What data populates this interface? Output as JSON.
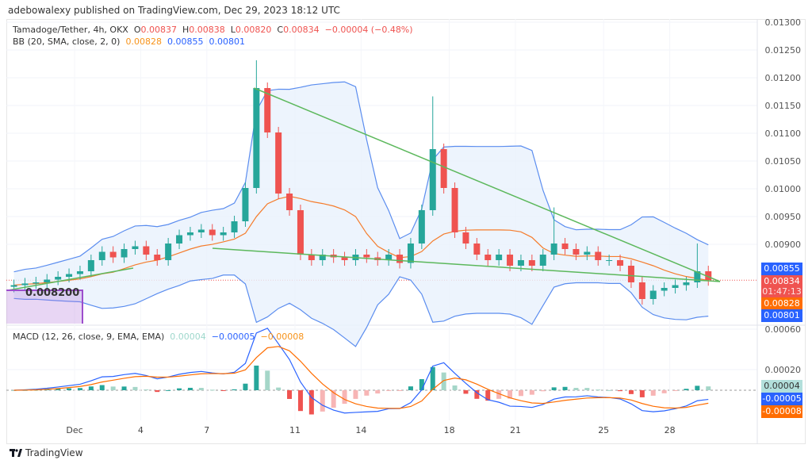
{
  "header": {
    "published": "adebowalexy published on TradingView.com, Dec 29, 2023 18:12 UTC"
  },
  "legend": {
    "symbol": "Tamadoge/Tether, 4h, OKX",
    "o_label": "O",
    "o": "0.00837",
    "h_label": "H",
    "h": "0.00838",
    "l_label": "L",
    "l": "0.00820",
    "c_label": "C",
    "c": "0.00834",
    "change": "−0.00004 (−0.48%)",
    "bb": "BB (20, SMA, close, 2, 0)",
    "bb_basis": "0.00828",
    "bb_upper": "0.00855",
    "bb_lower": "0.00801",
    "macd": "MACD (12, 26, close, 9, EMA, EMA)",
    "macd_hist": "0.00004",
    "macd_line": "−0.00005",
    "macd_signal": "−0.00008"
  },
  "price_axis": [
    "0.01300",
    "0.01250",
    "0.01200",
    "0.01150",
    "0.01100",
    "0.01050",
    "0.01000",
    "0.00950",
    "0.00900"
  ],
  "macd_axis": [
    "0.00060",
    "0.00020"
  ],
  "tags": {
    "upper": "0.00855",
    "last": "0.00834",
    "countdown": "01:47:13",
    "basis": "0.00828",
    "lower": "0.00801",
    "hist": "0.00004",
    "macd": "-0.00005",
    "signal": "-0.00008"
  },
  "price_range_label": "0.008200",
  "x_axis": [
    {
      "label": "Dec",
      "day": 1
    },
    {
      "label": "4",
      "day": 4
    },
    {
      "label": "7",
      "day": 7
    },
    {
      "label": "11",
      "day": 11
    },
    {
      "label": "14",
      "day": 14
    },
    {
      "label": "18",
      "day": 18
    },
    {
      "label": "21",
      "day": 21
    },
    {
      "label": "25",
      "day": 25
    },
    {
      "label": "28",
      "day": 28
    }
  ],
  "footer": {
    "brand": "TradingView"
  },
  "colors": {
    "up": "#26a69a",
    "down": "#ef5350",
    "bb_band": "#5b8def",
    "bb_basis": "#f57c2c",
    "bb_fill": "#e8f1fc",
    "trend": "#5cb85c",
    "macd": "#2962ff",
    "signal": "#ff6d00"
  },
  "chart_data": {
    "type": "candlestick",
    "close": [
      0.00825,
      0.00828,
      0.0083,
      0.00835,
      0.0084,
      0.00845,
      0.0085,
      0.0087,
      0.00885,
      0.00875,
      0.0089,
      0.00895,
      0.0088,
      0.0087,
      0.009,
      0.00915,
      0.0092,
      0.00925,
      0.00915,
      0.0092,
      0.0094,
      0.01,
      0.0118,
      0.011,
      0.0099,
      0.0096,
      0.0088,
      0.0087,
      0.0088,
      0.00875,
      0.0087,
      0.0088,
      0.00875,
      0.0087,
      0.0088,
      0.00865,
      0.009,
      0.0096,
      0.0107,
      0.01,
      0.0092,
      0.009,
      0.0088,
      0.0087,
      0.0088,
      0.0086,
      0.0087,
      0.0086,
      0.0088,
      0.009,
      0.0089,
      0.0088,
      0.00885,
      0.0087,
      0.0087,
      0.0086,
      0.0083,
      0.008,
      0.00815,
      0.0082,
      0.00825,
      0.0083,
      0.0085,
      0.00834
    ],
    "spike_highs": {
      "22": 0.0123,
      "38": 0.01165,
      "49": 0.00965,
      "62": 0.009
    },
    "spike_lows": {
      "57": 0.0079
    },
    "trendlines": [
      {
        "from": [
          "Dec 9",
          0.0118
        ],
        "to": [
          "Dec 29",
          0.00838
        ]
      },
      {
        "from": [
          "Dec 7",
          0.0089
        ],
        "to": [
          "Dec 29",
          0.00838
        ]
      },
      {
        "from": [
          "Dec 3",
          0.0085
        ],
        "to": [
          "Dec 3",
          0.0085
        ]
      }
    ],
    "ylim": [
      0.0079,
      0.013
    ]
  }
}
